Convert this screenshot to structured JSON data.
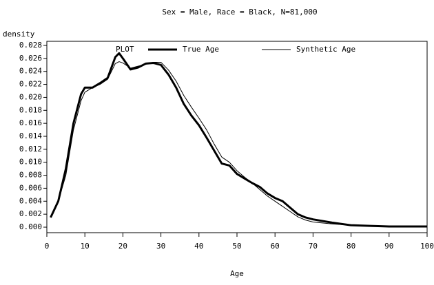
{
  "chart_data": {
    "type": "line",
    "title": "Sex = Male, Race = Black, N=81,000",
    "xlabel": "Age",
    "ylabel": "density",
    "legend_title": "PLOT",
    "x": [
      1,
      3,
      5,
      7,
      9,
      10,
      12,
      14,
      16,
      18,
      19,
      20,
      22,
      24,
      26,
      28,
      30,
      32,
      34,
      36,
      38,
      40,
      42,
      44,
      46,
      48,
      50,
      52,
      54,
      56,
      58,
      60,
      62,
      64,
      66,
      68,
      70,
      75,
      80,
      85,
      90,
      95,
      100
    ],
    "series": [
      {
        "name": "True Age",
        "color": "#000000",
        "width": 3,
        "values": [
          0.0015,
          0.004,
          0.009,
          0.016,
          0.0205,
          0.0215,
          0.0215,
          0.0222,
          0.023,
          0.0262,
          0.0268,
          0.026,
          0.0243,
          0.0246,
          0.0252,
          0.0253,
          0.025,
          0.0235,
          0.0215,
          0.019,
          0.0172,
          0.0157,
          0.0138,
          0.0118,
          0.0098,
          0.0095,
          0.0082,
          0.0075,
          0.0068,
          0.0062,
          0.0052,
          0.0045,
          0.004,
          0.003,
          0.002,
          0.0015,
          0.0012,
          0.0007,
          0.0003,
          0.0002,
          0.0001,
          0.0001,
          0.0001
        ]
      },
      {
        "name": "Synthetic Age",
        "color": "#000000",
        "width": 1,
        "values": [
          0.0015,
          0.004,
          0.008,
          0.015,
          0.0195,
          0.0208,
          0.0215,
          0.022,
          0.0228,
          0.0252,
          0.0255,
          0.0253,
          0.0245,
          0.0248,
          0.0251,
          0.0254,
          0.0254,
          0.0242,
          0.0225,
          0.0203,
          0.0185,
          0.0168,
          0.015,
          0.0128,
          0.0108,
          0.01,
          0.0087,
          0.0077,
          0.0068,
          0.0058,
          0.0048,
          0.004,
          0.0032,
          0.0024,
          0.0016,
          0.0011,
          0.0008,
          0.0005,
          0.0003,
          0.0002,
          0.0001,
          0.0001,
          0.0001
        ]
      }
    ],
    "xlim": [
      0,
      100
    ],
    "xticks": [
      0,
      10,
      20,
      30,
      40,
      50,
      60,
      70,
      80,
      90,
      100
    ],
    "ylim": [
      0,
      0.028
    ],
    "yticks": [
      {
        "value": 0,
        "label": "0.000"
      },
      {
        "value": 0.002,
        "label": "0.002"
      },
      {
        "value": 0.004,
        "label": "0.004"
      },
      {
        "value": 0.006,
        "label": "0.006"
      },
      {
        "value": 0.008,
        "label": "0.008"
      },
      {
        "value": 0.01,
        "label": "0.010"
      },
      {
        "value": 0.012,
        "label": "0.012"
      },
      {
        "value": 0.014,
        "label": "0.014"
      },
      {
        "value": 0.016,
        "label": "0.016"
      },
      {
        "value": 0.018,
        "label": "0.018"
      },
      {
        "value": 0.02,
        "label": "0.020"
      },
      {
        "value": 0.022,
        "label": "0.022"
      },
      {
        "value": 0.024,
        "label": "0.024"
      },
      {
        "value": 0.026,
        "label": "0.026"
      },
      {
        "value": 0.028,
        "label": "0.028"
      }
    ]
  }
}
